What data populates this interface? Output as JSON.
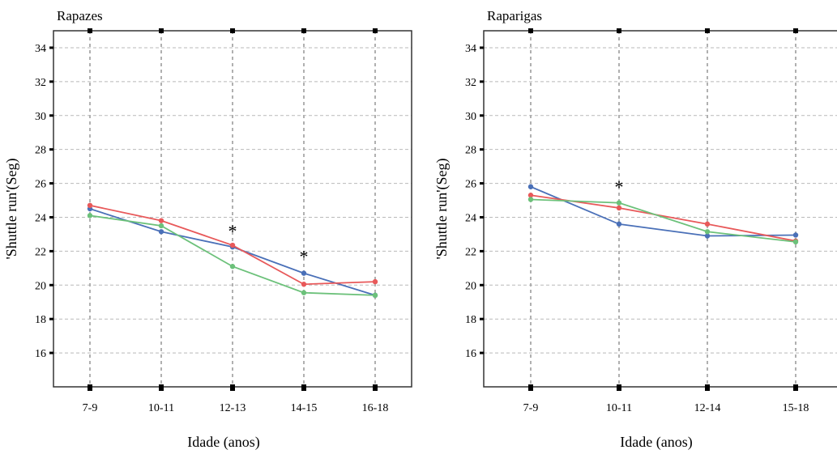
{
  "chart_data": [
    {
      "type": "line",
      "title": "Rapazes",
      "xlabel": "Idade (anos)",
      "ylabel": "'Shuttle run'(Seg)",
      "categories": [
        "7-9",
        "10-11",
        "12-13",
        "14-15",
        "16-18"
      ],
      "ylim": [
        14,
        35
      ],
      "yticks": [
        16,
        18,
        20,
        22,
        24,
        26,
        28,
        30,
        32,
        34
      ],
      "grid": true,
      "series": [
        {
          "color": "#4a70b8",
          "values": [
            24.5,
            23.15,
            22.25,
            20.7,
            19.4
          ]
        },
        {
          "color": "#e8595a",
          "values": [
            24.7,
            23.8,
            22.35,
            20.05,
            20.2
          ]
        },
        {
          "color": "#6cc17a",
          "values": [
            24.1,
            23.5,
            21.1,
            19.55,
            19.4
          ]
        }
      ],
      "annotations": [
        {
          "text": "*",
          "category": "12-13",
          "y": 23.4
        },
        {
          "text": "*",
          "category": "14-15",
          "y": 21.9
        }
      ]
    },
    {
      "type": "line",
      "title": "Raparigas",
      "xlabel": "Idade (anos)",
      "ylabel": "'Shuttle run'(Seg)",
      "categories": [
        "7-9",
        "10-11",
        "12-14",
        "15-18"
      ],
      "ylim": [
        14,
        35
      ],
      "yticks": [
        16,
        18,
        20,
        22,
        24,
        26,
        28,
        30,
        32,
        34
      ],
      "grid": true,
      "series": [
        {
          "color": "#4a70b8",
          "values": [
            25.8,
            23.6,
            22.9,
            22.95
          ]
        },
        {
          "color": "#e8595a",
          "values": [
            25.3,
            24.55,
            23.6,
            22.6
          ]
        },
        {
          "color": "#6cc17a",
          "values": [
            25.05,
            24.85,
            23.15,
            22.55
          ]
        }
      ],
      "annotations": [
        {
          "text": "*",
          "category": "10-11",
          "y": 26.0
        }
      ]
    }
  ]
}
